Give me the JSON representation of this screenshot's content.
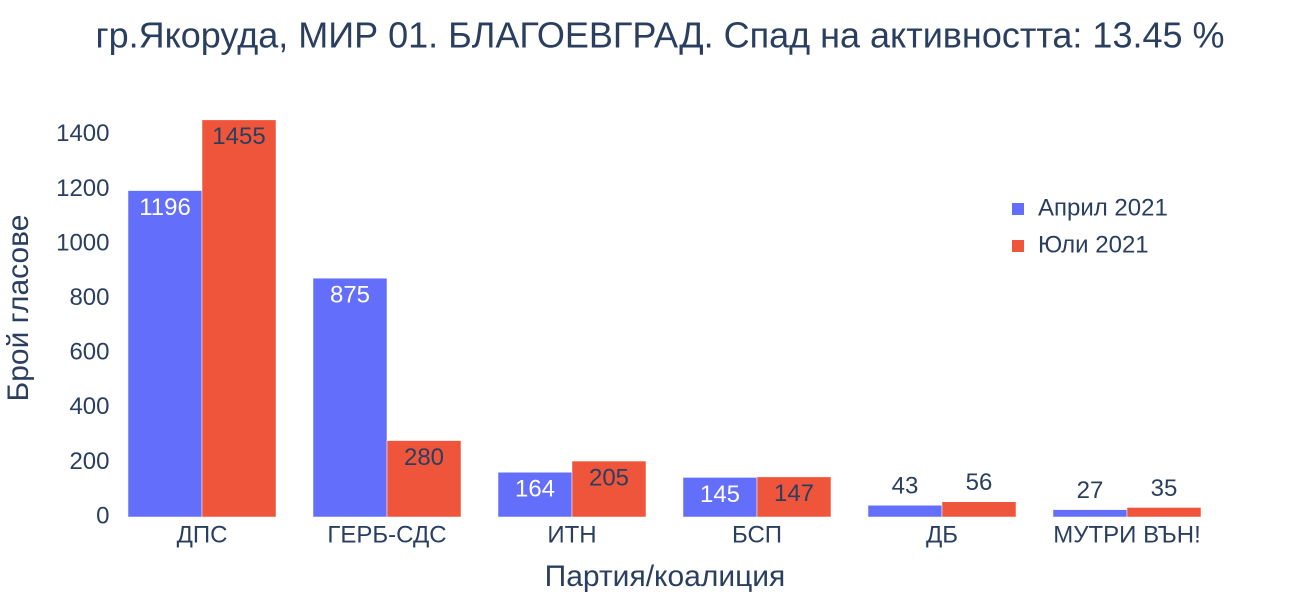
{
  "chart_data": {
    "type": "bar",
    "title": "гр.Якоруда, МИР 01. БЛАГОЕВГРАД. Спад на активността: 13.45 %",
    "x_label": "Партия/коалиция",
    "y_label": "Брой гласове",
    "categories": [
      "ДПС",
      "ГЕРБ-СДС",
      "ИТН",
      "БСП",
      "ДБ",
      "МУТРИ ВЪН!"
    ],
    "series": [
      {
        "name": "Април 2021",
        "color": "#636efa",
        "values": [
          1196,
          875,
          164,
          145,
          43,
          27
        ]
      },
      {
        "name": "Юли 2021",
        "color": "#ef553b",
        "values": [
          1455,
          280,
          205,
          147,
          56,
          35
        ]
      }
    ],
    "ylim": [
      0,
      1527.75
    ],
    "yticks": [
      0,
      200,
      400,
      600,
      800,
      1000,
      1200,
      1400
    ],
    "grid": false,
    "legend_position": "upper right"
  }
}
